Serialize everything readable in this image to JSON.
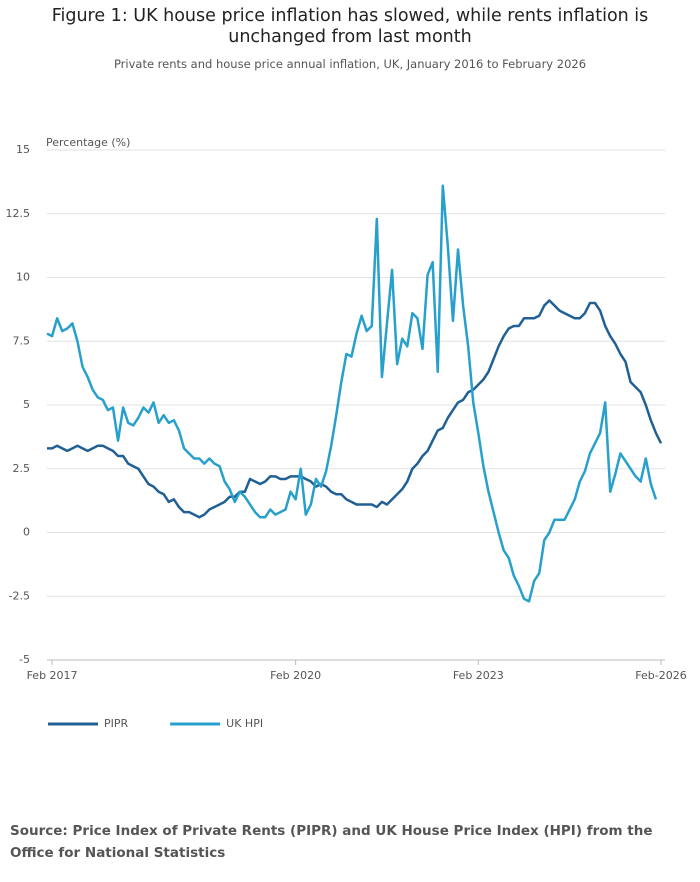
{
  "chart_data": {
    "type": "line",
    "title": "Figure 1: UK house price inflation has slowed, while rents inflation is unchanged from last month",
    "subtitle": "Private rents and house price annual inflation, UK, January 2016 to February 2026",
    "y_label": "Percentage (%)",
    "source": "Source: Price Index of Private Rents (PIPR) and UK House Price Index (HPI) from the Office for National Statistics",
    "categories": [
      null,
      "Feb 2017",
      null,
      null,
      null,
      null,
      null,
      null,
      null,
      null,
      null,
      null,
      null,
      null,
      null,
      null,
      null,
      null,
      null,
      null,
      null,
      null,
      null,
      null,
      null,
      null,
      null,
      null,
      null,
      null,
      null,
      null,
      null,
      null,
      null,
      null,
      null,
      null,
      null,
      null,
      null,
      null,
      null,
      null,
      null,
      null,
      null,
      null,
      null,
      "Feb 2020",
      null,
      null,
      null,
      null,
      null,
      null,
      null,
      null,
      null,
      null,
      null,
      null,
      null,
      null,
      null,
      null,
      null,
      null,
      null,
      null,
      null,
      null,
      null,
      null,
      null,
      null,
      null,
      null,
      null,
      null,
      null,
      null,
      null,
      null,
      null,
      "Feb 2023",
      null,
      null,
      null,
      null,
      null,
      null,
      null,
      null,
      null,
      null,
      null,
      null,
      null,
      null,
      null,
      null,
      null,
      null,
      null,
      null,
      null,
      null,
      null,
      null,
      null,
      null,
      null,
      null,
      null,
      null,
      null,
      null,
      null,
      null,
      null,
      "Feb-2026"
    ],
    "series": [
      {
        "name": "PIPR",
        "color": "#206095",
        "values": [
          3.3,
          3.3,
          3.4,
          3.3,
          3.2,
          3.3,
          3.4,
          3.3,
          3.2,
          3.3,
          3.4,
          3.4,
          3.3,
          3.2,
          3.0,
          3.0,
          2.7,
          2.6,
          2.5,
          2.2,
          1.9,
          1.8,
          1.6,
          1.5,
          1.2,
          1.3,
          1.0,
          0.8,
          0.8,
          0.7,
          0.6,
          0.7,
          0.9,
          1.0,
          1.1,
          1.2,
          1.4,
          1.4,
          1.6,
          1.6,
          2.1,
          2.0,
          1.9,
          2.0,
          2.2,
          2.2,
          2.1,
          2.1,
          2.2,
          2.2,
          2.2,
          2.1,
          2.0,
          1.8,
          1.9,
          1.8,
          1.6,
          1.5,
          1.5,
          1.3,
          1.2,
          1.1,
          1.1,
          1.1,
          1.1,
          1.0,
          1.2,
          1.1,
          1.3,
          1.5,
          1.7,
          2.0,
          2.5,
          2.7,
          3.0,
          3.2,
          3.6,
          4.0,
          4.1,
          4.5,
          4.8,
          5.1,
          5.2,
          5.5,
          5.6,
          5.8,
          6.0,
          6.3,
          6.8,
          7.3,
          7.7,
          8.0,
          8.1,
          8.1,
          8.4,
          8.4,
          8.4,
          8.5,
          8.9,
          9.1,
          8.9,
          8.7,
          8.6,
          8.5,
          8.4,
          8.4,
          8.6,
          9.0,
          9.0,
          8.7,
          8.1,
          7.7,
          7.4,
          7.0,
          6.7,
          5.9,
          5.7,
          5.5,
          5.0,
          4.4,
          3.9,
          3.5
        ]
      },
      {
        "name": "UK HPI",
        "color": "#27a0cc",
        "values": [
          7.8,
          7.7,
          8.4,
          7.9,
          8.0,
          8.2,
          7.5,
          6.5,
          6.1,
          5.6,
          5.3,
          5.2,
          4.8,
          4.9,
          3.6,
          4.9,
          4.3,
          4.2,
          4.5,
          4.9,
          4.7,
          5.1,
          4.3,
          4.6,
          4.3,
          4.4,
          4.0,
          3.3,
          3.1,
          2.9,
          2.9,
          2.7,
          2.9,
          2.7,
          2.6,
          2.0,
          1.7,
          1.2,
          1.6,
          1.4,
          1.1,
          0.8,
          0.6,
          0.6,
          0.9,
          0.7,
          0.8,
          0.9,
          1.6,
          1.3,
          2.5,
          0.7,
          1.1,
          2.1,
          1.8,
          2.4,
          3.4,
          4.6,
          5.9,
          7.0,
          6.9,
          7.8,
          8.5,
          7.9,
          8.1,
          12.3,
          6.1,
          8.2,
          10.3,
          6.6,
          7.6,
          7.3,
          8.6,
          8.4,
          7.2,
          10.1,
          10.6,
          6.3,
          13.6,
          11.2,
          8.3,
          11.1,
          8.9,
          7.3,
          5.1,
          3.9,
          2.6,
          1.6,
          0.8,
          0.0,
          -0.7,
          -1.0,
          -1.7,
          -2.1,
          -2.6,
          -2.7,
          -1.9,
          -1.6,
          -0.3,
          0.0,
          0.5,
          0.5,
          0.5,
          0.9,
          1.3,
          2.0,
          2.4,
          3.1,
          3.5,
          3.9,
          5.1,
          1.6,
          2.3,
          3.1,
          2.8,
          2.5,
          2.2,
          2.0,
          2.9,
          1.9,
          1.3,
          null
        ]
      }
    ],
    "ylim": [
      -5,
      15
    ],
    "yticks": [
      -5,
      -2.5,
      0,
      2.5,
      5,
      7.5,
      10,
      12.5,
      15
    ],
    "grid": true,
    "legend": "bottom"
  }
}
